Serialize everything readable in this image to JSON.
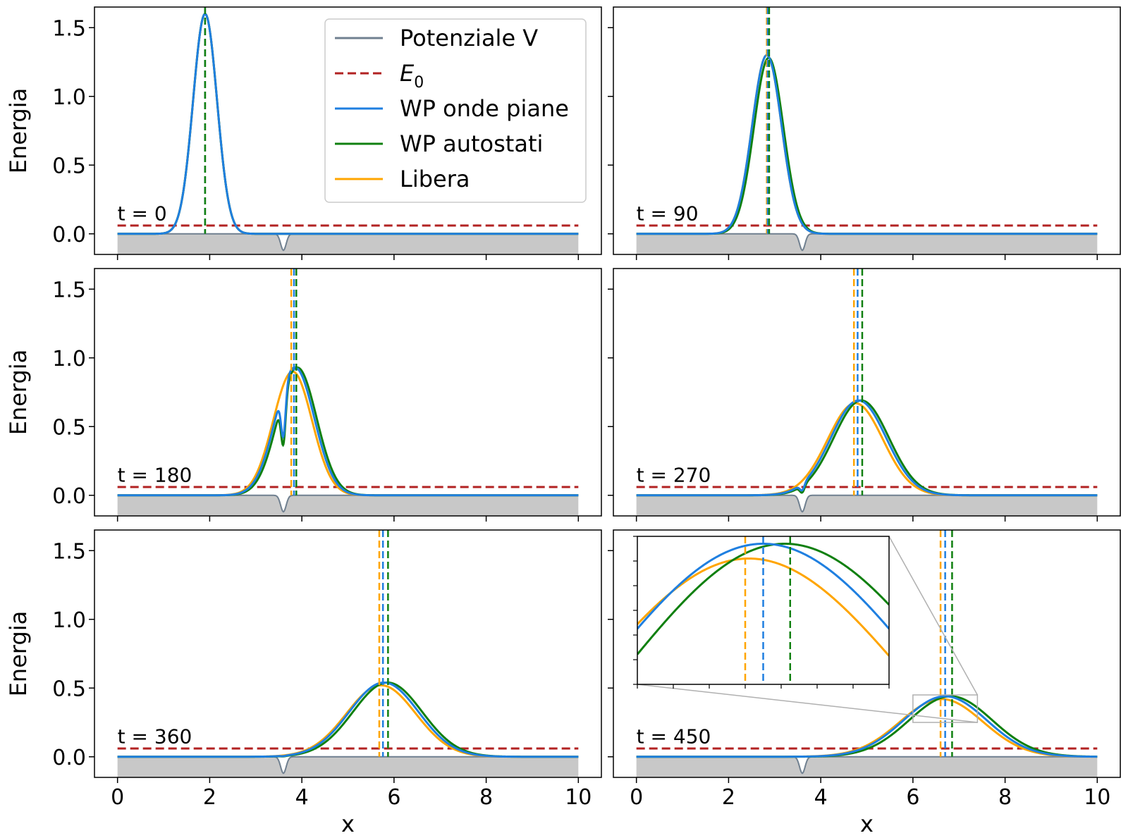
{
  "chart_data": {
    "type": "line",
    "layout": "3x2 grid of panels with shared axes",
    "xlabel": "x",
    "ylabel": "Energia",
    "xlim": [
      -0.5,
      10.5
    ],
    "ylim": [
      -0.15,
      1.65
    ],
    "xticks": [
      0,
      2,
      4,
      6,
      8,
      10
    ],
    "yticks": [
      0.0,
      0.5,
      1.0,
      1.5
    ],
    "grid": false,
    "legend": {
      "placement": "upper-right of first panel",
      "entries": [
        {
          "label": "Potenziale V",
          "color": "#708090",
          "style": "solid"
        },
        {
          "label": "E",
          "label_sub": "0",
          "color": "#b22222",
          "style": "dashed"
        },
        {
          "label": "WP onde piane",
          "color": "#1f7fe0",
          "style": "solid"
        },
        {
          "label": "WP autostati",
          "color": "#108010",
          "style": "solid"
        },
        {
          "label": "Libera",
          "color": "#ffa500",
          "style": "solid"
        }
      ]
    },
    "potential": {
      "well_center": 3.6,
      "well_depth": 0.12,
      "well_width": 0.06,
      "fill_bottom": -0.15,
      "fill_color": "#c8c8c8"
    },
    "E0": 0.06,
    "panels": [
      {
        "time_label": "t = 0",
        "free": {
          "center": 1.9,
          "sigma": 0.26,
          "height": 1.6
        },
        "pw": {
          "center": 1.9,
          "sigma": 0.26,
          "height": 1.6
        },
        "eig": {
          "center": 1.9,
          "sigma": 0.26,
          "height": 1.6
        },
        "vlines": {
          "free": 1.9,
          "pw": 1.9,
          "eig": 1.9
        }
      },
      {
        "time_label": "t = 90",
        "free": {
          "center": 2.83,
          "sigma": 0.32,
          "height": 1.3
        },
        "pw": {
          "center": 2.83,
          "sigma": 0.32,
          "height": 1.3
        },
        "eig": {
          "center": 2.87,
          "sigma": 0.32,
          "height": 1.28
        },
        "vlines": {
          "free": 2.83,
          "pw": 2.85,
          "eig": 2.88
        }
      },
      {
        "time_label": "t = 180",
        "free": {
          "center": 3.8,
          "sigma": 0.42,
          "height": 0.9
        },
        "pw": {
          "center": 3.85,
          "sigma": 0.42,
          "height": 0.93
        },
        "eig": {
          "center": 3.9,
          "sigma": 0.42,
          "height": 0.93
        },
        "vlines": {
          "free": 3.77,
          "pw": 3.83,
          "eig": 3.88
        }
      },
      {
        "time_label": "t = 270",
        "free": {
          "center": 4.75,
          "sigma": 0.6,
          "height": 0.67
        },
        "pw": {
          "center": 4.82,
          "sigma": 0.6,
          "height": 0.69
        },
        "eig": {
          "center": 4.88,
          "sigma": 0.6,
          "height": 0.69
        },
        "vlines": {
          "free": 4.72,
          "pw": 4.8,
          "eig": 4.9
        }
      },
      {
        "time_label": "t = 360",
        "free": {
          "center": 5.72,
          "sigma": 0.75,
          "height": 0.52
        },
        "pw": {
          "center": 5.78,
          "sigma": 0.75,
          "height": 0.54
        },
        "eig": {
          "center": 5.86,
          "sigma": 0.75,
          "height": 0.54
        },
        "vlines": {
          "free": 5.68,
          "pw": 5.76,
          "eig": 5.87
        }
      },
      {
        "time_label": "t = 450",
        "free": {
          "center": 6.62,
          "sigma": 0.9,
          "height": 0.42
        },
        "pw": {
          "center": 6.7,
          "sigma": 0.9,
          "height": 0.44
        },
        "eig": {
          "center": 6.82,
          "sigma": 0.9,
          "height": 0.44
        },
        "vlines": {
          "free": 6.6,
          "pw": 6.7,
          "eig": 6.85
        }
      }
    ],
    "inset": {
      "panel": 5,
      "xlim": [
        6.0,
        7.4
      ],
      "ylim": [
        0.25,
        0.45
      ]
    }
  }
}
